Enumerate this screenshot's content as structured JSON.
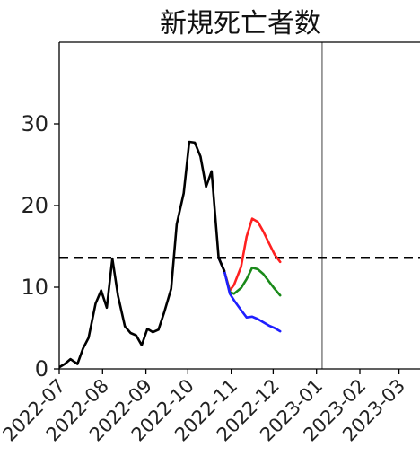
{
  "chart_data": {
    "type": "line",
    "title": "新規死亡者数",
    "xlabel": "",
    "ylabel": "",
    "x_tick_labels": [
      "2022-07",
      "2022-08",
      "2022-09",
      "2022-10",
      "2022-11",
      "2022-12",
      "2023-01",
      "2023-02",
      "2023-03"
    ],
    "y_ticks": [
      0,
      10,
      20,
      30
    ],
    "ylim": [
      0,
      40
    ],
    "xlim": [
      "2022-07-01",
      "2023-03-16"
    ],
    "grid": false,
    "legend": "none",
    "reference_line": {
      "style": "dashed",
      "color": "#000000",
      "y": 13.6
    },
    "vertical_marker": {
      "x": "2023-01-05",
      "color": "#777777"
    },
    "series": [
      {
        "role": "observed",
        "color": "#000000",
        "points": [
          [
            "2022-07-01",
            0.2
          ],
          [
            "2022-07-05",
            0.6
          ],
          [
            "2022-07-09",
            1.2
          ],
          [
            "2022-07-14",
            0.6
          ],
          [
            "2022-07-18",
            2.5
          ],
          [
            "2022-07-22",
            3.8
          ],
          [
            "2022-07-27",
            8.0
          ],
          [
            "2022-07-31",
            9.6
          ],
          [
            "2022-08-04",
            7.5
          ],
          [
            "2022-08-08",
            13.5
          ],
          [
            "2022-08-12",
            9.0
          ],
          [
            "2022-08-17",
            5.2
          ],
          [
            "2022-08-21",
            4.4
          ],
          [
            "2022-08-25",
            4.1
          ],
          [
            "2022-08-29",
            2.9
          ],
          [
            "2022-09-02",
            4.9
          ],
          [
            "2022-09-06",
            4.5
          ],
          [
            "2022-09-10",
            4.8
          ],
          [
            "2022-09-14",
            6.9
          ],
          [
            "2022-09-19",
            9.8
          ],
          [
            "2022-09-23",
            17.7
          ],
          [
            "2022-09-28",
            21.5
          ],
          [
            "2022-10-02",
            27.8
          ],
          [
            "2022-10-06",
            27.7
          ],
          [
            "2022-10-10",
            26.0
          ],
          [
            "2022-10-14",
            22.3
          ],
          [
            "2022-10-18",
            24.2
          ],
          [
            "2022-10-23",
            13.6
          ],
          [
            "2022-10-27",
            12.0
          ]
        ]
      },
      {
        "role": "projection-high",
        "color": "#ff2020",
        "points": [
          [
            "2022-10-23",
            13.6
          ],
          [
            "2022-10-27",
            12.0
          ],
          [
            "2022-10-31",
            9.6
          ],
          [
            "2022-11-03",
            10.3
          ],
          [
            "2022-11-08",
            12.5
          ],
          [
            "2022-11-12",
            16.2
          ],
          [
            "2022-11-16",
            18.4
          ],
          [
            "2022-11-20",
            18.0
          ],
          [
            "2022-11-24",
            16.8
          ],
          [
            "2022-11-28",
            15.4
          ],
          [
            "2022-12-02",
            14.0
          ],
          [
            "2022-12-06",
            13.1
          ]
        ]
      },
      {
        "role": "projection-mid",
        "color": "#1a8a1a",
        "points": [
          [
            "2022-10-23",
            13.6
          ],
          [
            "2022-10-27",
            12.0
          ],
          [
            "2022-10-31",
            9.4
          ],
          [
            "2022-11-03",
            9.2
          ],
          [
            "2022-11-08",
            9.9
          ],
          [
            "2022-11-12",
            11.0
          ],
          [
            "2022-11-16",
            12.4
          ],
          [
            "2022-11-20",
            12.2
          ],
          [
            "2022-11-24",
            11.6
          ],
          [
            "2022-11-28",
            10.7
          ],
          [
            "2022-12-02",
            9.8
          ],
          [
            "2022-12-06",
            9.0
          ]
        ]
      },
      {
        "role": "projection-low",
        "color": "#1f1fff",
        "points": [
          [
            "2022-10-23",
            13.6
          ],
          [
            "2022-10-27",
            12.0
          ],
          [
            "2022-10-31",
            9.2
          ],
          [
            "2022-11-03",
            8.4
          ],
          [
            "2022-11-08",
            7.2
          ],
          [
            "2022-11-12",
            6.3
          ],
          [
            "2022-11-16",
            6.4
          ],
          [
            "2022-11-20",
            6.1
          ],
          [
            "2022-11-24",
            5.7
          ],
          [
            "2022-11-28",
            5.3
          ],
          [
            "2022-12-02",
            5.0
          ],
          [
            "2022-12-06",
            4.6
          ]
        ]
      }
    ]
  }
}
